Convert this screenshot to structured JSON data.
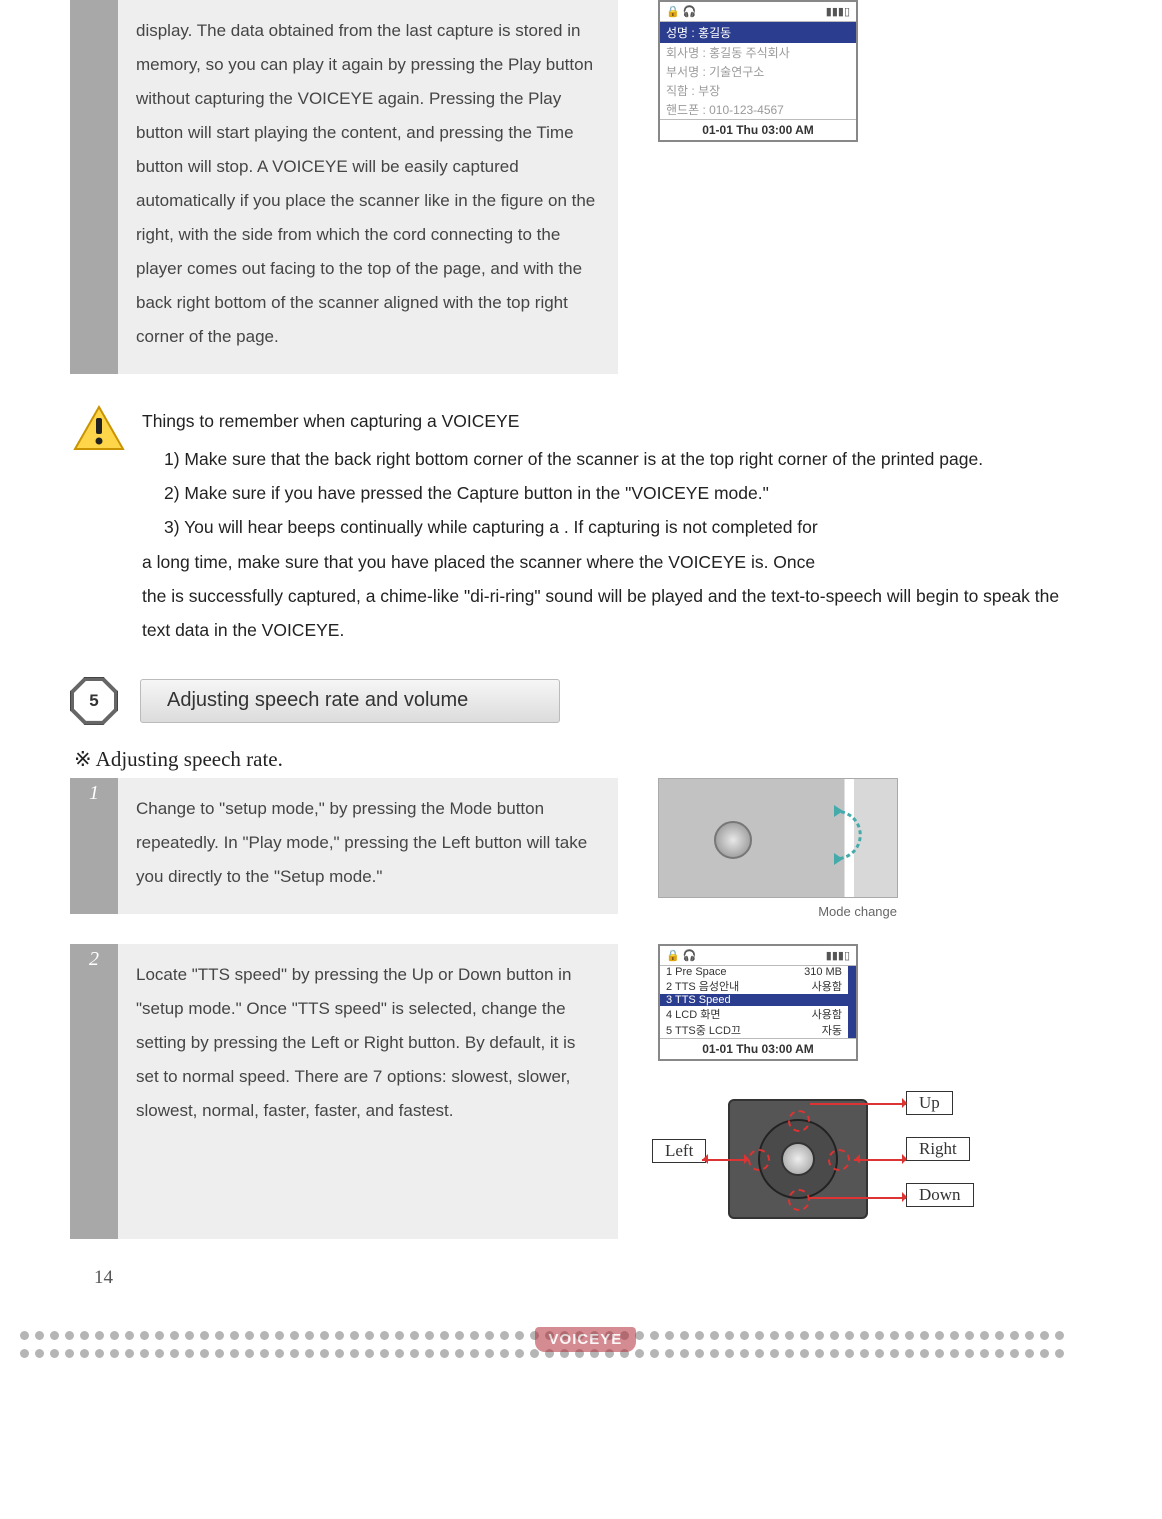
{
  "intro_step": {
    "text": "display. The data obtained from the last capture is stored in memory, so you can play it again by pressing the Play button without capturing the VOICEYE again. Pressing the Play button will start playing the content, and pressing the Time button will stop. A VOICEYE will be easily captured automatically if you place the scanner like in the figure on the right, with the side from which the cord connecting to the player comes out facing to the top of the page, and with the back right bottom of the scanner aligned with the top right corner of the page."
  },
  "phone1": {
    "time_bar": "01-01 Thu  03:00 AM",
    "blue_line": "성명 : 홍길동",
    "grey_lines": [
      "회사명 : 홍길동 주식회사",
      "부서명 : 기술연구소",
      "직함 : 부장",
      "핸드폰 : 010-123-4567"
    ]
  },
  "warning": {
    "title": "Things to remember when capturing a VOICEYE",
    "items": [
      "1)   Make sure that the back right bottom corner of the scanner is at the top right corner of the printed page.",
      "2)   Make sure if you have pressed the Capture button in the \"VOICEYE mode.\"",
      "3)    You will hear beeps continually while capturing a . If capturing is not completed for"
    ],
    "cont1": "a  long  time,  make  sure  that  you  have  placed  the  scanner  where  the  VOICEYE    is.   Once",
    "cont2": "the    is successfully captured, a chime-like \"di-ri-ring\" sound will be played and the text-to-speech will begin to speak the text data in the VOICEYE."
  },
  "section5": {
    "num": "5",
    "title": "Adjusting speech rate and volume"
  },
  "subhead1": "※  Adjusting speech rate.",
  "step1": {
    "num": "1",
    "text": "Change to \"setup mode,\" by pressing the Mode button repeatedly. In \"Play mode,\" pressing the Left button will take you directly to the \"Setup mode.\"",
    "caption": "Mode change"
  },
  "step2": {
    "num": "2",
    "text": "Locate \"TTS speed\" by pressing the Up or Down button in \"setup mode.\"    Once \"TTS speed\" is selected, change the setting by pressing the Left or Right button. By default, it is set to normal speed. There are 7 options: slowest, slower, slowest, normal, faster, faster, and fastest."
  },
  "phone2": {
    "status_right": "310 MB",
    "items_l": [
      "1 Pre Space",
      "2 TTS 음성안내",
      "3 TTS Speed",
      "4 LCD 화면",
      "5 TTS중 LCD끄"
    ],
    "items_r": [
      "",
      "사용함",
      "",
      "사용함",
      "자동"
    ],
    "highlight_index": 2,
    "time_bar": "01-01 Thu  03:00 AM"
  },
  "dpad": {
    "left": "Left",
    "right": "Right",
    "up": "Up",
    "down": "Down"
  },
  "page_number": "14",
  "footer_logo": "VOICEYE",
  "colors": {
    "grey_col": "#a8a8a8",
    "panel": "#eeeeee",
    "blue": "#2b3d8f",
    "accent_red": "#d33",
    "logo_red": "#b12d3a"
  }
}
